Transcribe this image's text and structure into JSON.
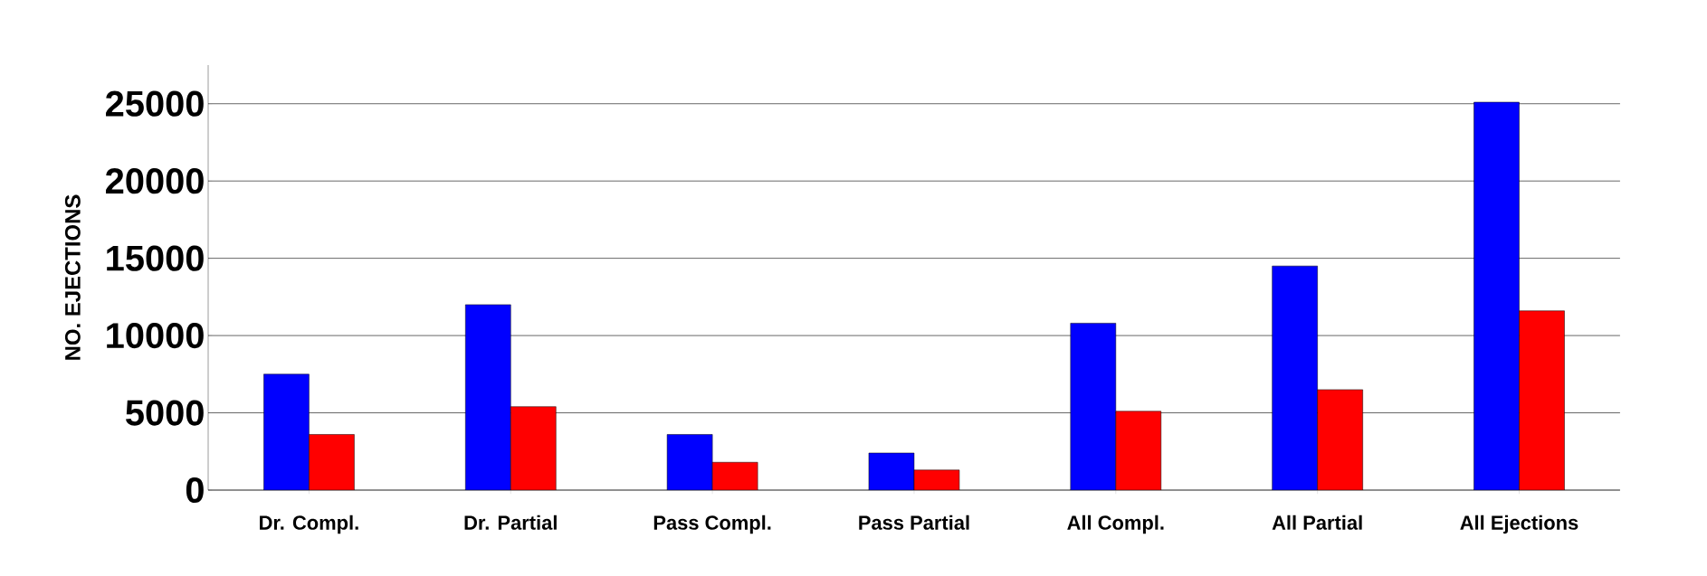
{
  "chart_data": {
    "type": "bar",
    "ylabel": "NO. EJECTIONS",
    "categories": [
      "Dr. Compl.",
      "Dr. Partial",
      "Pass Compl.",
      "Pass Partial",
      "All Compl.",
      "All Partial",
      "All Ejections"
    ],
    "series": [
      {
        "color": "#0000ff",
        "values": [
          7500,
          12000,
          3600,
          2400,
          10800,
          14500,
          25100
        ]
      },
      {
        "color": "#ff0000",
        "values": [
          3600,
          5400,
          1800,
          1300,
          5100,
          6500,
          11600
        ]
      }
    ],
    "ylim": [
      0,
      27500
    ],
    "yticks": [
      0,
      5000,
      10000,
      15000,
      20000,
      25000
    ],
    "grid": "y"
  }
}
